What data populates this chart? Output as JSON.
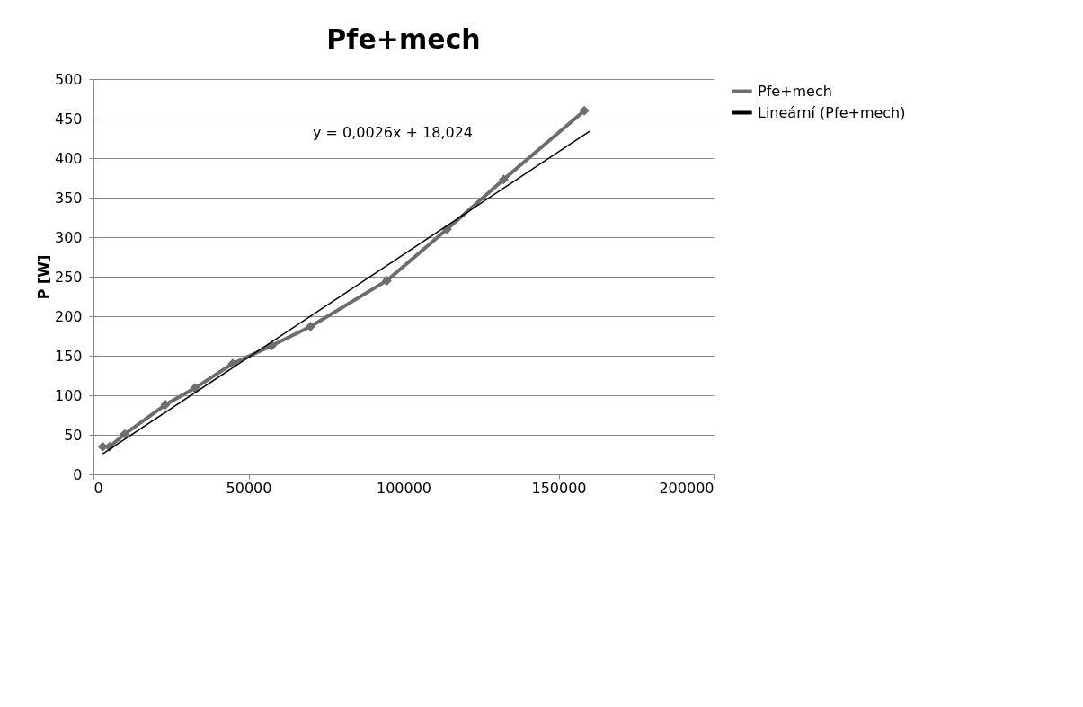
{
  "chart_data": {
    "type": "line",
    "title": "Pfe+mech",
    "ylabel": "P [W]",
    "xlim": [
      0,
      200000
    ],
    "xticks": [
      0,
      50000,
      100000,
      150000,
      200000
    ],
    "ylim": [
      0,
      500
    ],
    "yticks": [
      0,
      50,
      100,
      150,
      200,
      250,
      300,
      350,
      400,
      450,
      500
    ],
    "grid": "y",
    "legend": "right",
    "line_style": "solid",
    "annotations": [
      "y = 0,0026x + 18,024"
    ],
    "series": [
      {
        "name": "Pfe+mech",
        "color": "#6d6d6d",
        "marker": "diamond",
        "x": [
          3000,
          5200,
          10100,
          23200,
          32700,
          44900,
          57600,
          70000,
          94600,
          114000,
          132300,
          158300
        ],
        "values": [
          35,
          35,
          51,
          88,
          109,
          140,
          163,
          187,
          245,
          310,
          373,
          460
        ]
      },
      {
        "name": "Lineární (Pfe+mech)",
        "color": "#000000",
        "marker": "none",
        "x": [
          3000,
          160000
        ],
        "values": [
          26,
          434
        ]
      }
    ]
  }
}
